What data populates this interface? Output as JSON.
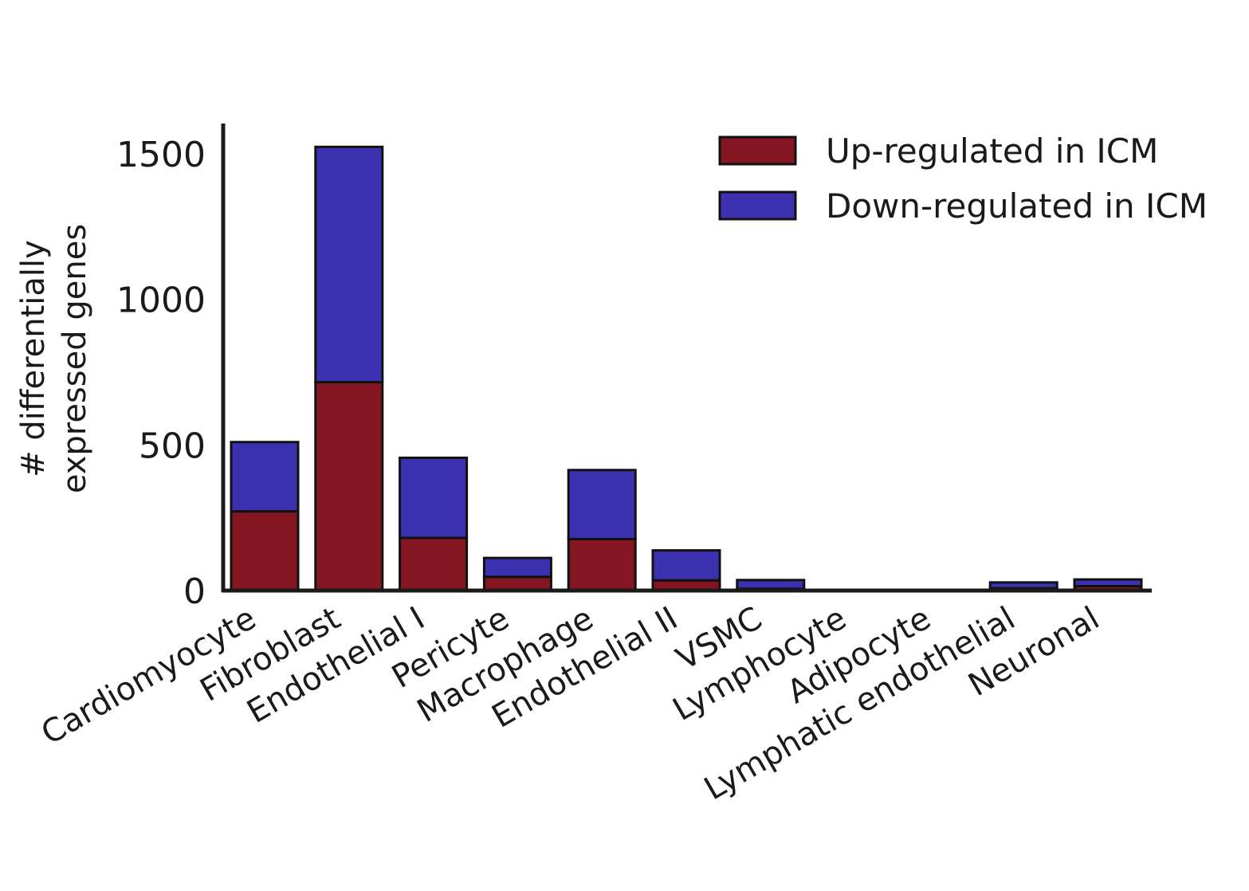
{
  "chart_data": {
    "type": "bar",
    "stacked": true,
    "title": "",
    "xlabel": "",
    "ylabel": [
      "# differentially",
      "expressed genes"
    ],
    "ylim": [
      0,
      1600
    ],
    "yticks": [
      0,
      500,
      1000,
      1500
    ],
    "grid": false,
    "legend_position": "top-right",
    "categories": [
      "Cardiomyocyte",
      "Fibroblast",
      "Endothelial I",
      "Pericyte",
      "Macrophage",
      "Endothelial II",
      "VSMC",
      "Lymphocyte",
      "Adipocyte",
      "Lymphatic endothelial",
      "Neuronal"
    ],
    "series": [
      {
        "name": "Up-regulated in ICM",
        "color": "#841622",
        "values": [
          272,
          716,
          181,
          47,
          177,
          35,
          6,
          0,
          0,
          8,
          15
        ]
      },
      {
        "name": "Down-regulated in ICM",
        "color": "#3c31b0",
        "values": [
          238,
          808,
          275,
          65,
          237,
          103,
          30,
          0,
          0,
          20,
          23
        ]
      }
    ]
  }
}
